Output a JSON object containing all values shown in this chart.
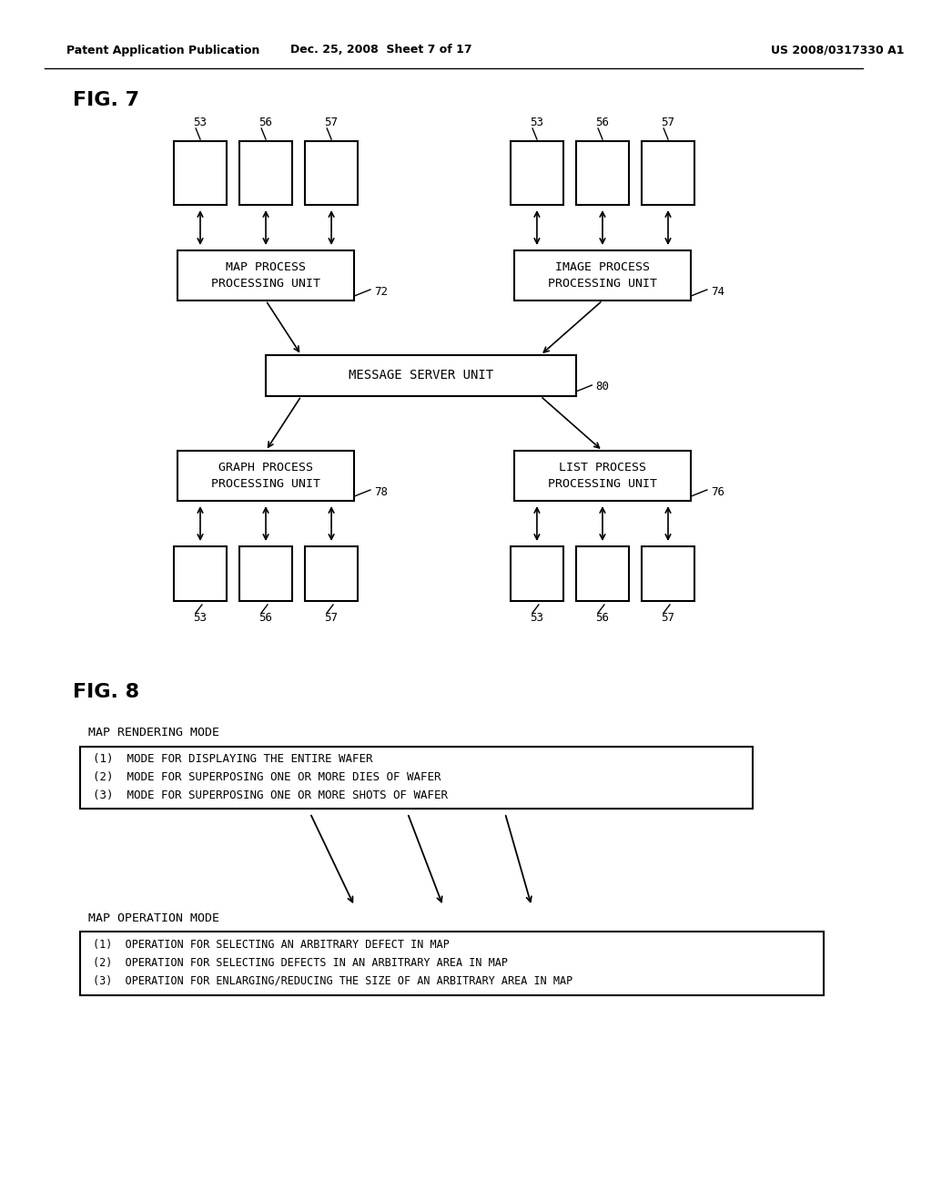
{
  "bg_color": "#ffffff",
  "header_left": "Patent Application Publication",
  "header_center": "Dec. 25, 2008  Sheet 7 of 17",
  "header_right": "US 2008/0317330 A1",
  "fig7_label": "FIG. 7",
  "fig8_label": "FIG. 8",
  "node_map_process": "MAP PROCESS\nPROCESSING UNIT",
  "node_map_label": "72",
  "node_image_process": "IMAGE PROCESS\nPROCESSING UNIT",
  "node_image_label": "74",
  "node_message_server": "MESSAGE SERVER UNIT",
  "node_message_label": "80",
  "node_graph_process": "GRAPH PROCESS\nPROCESSING UNIT",
  "node_graph_label": "78",
  "node_list_process": "LIST PROCESS\nPROCESSING UNIT",
  "node_list_label": "76",
  "small_box_labels": [
    "53",
    "56",
    "57"
  ],
  "rendering_mode_title": "MAP RENDERING MODE",
  "rendering_box_lines": [
    "(1)  MODE FOR DISPLAYING THE ENTIRE WAFER",
    "(2)  MODE FOR SUPERPOSING ONE OR MORE DIES OF WAFER",
    "(3)  MODE FOR SUPERPOSING ONE OR MORE SHOTS OF WAFER"
  ],
  "operation_mode_title": "MAP OPERATION MODE",
  "operation_box_lines": [
    "(1)  OPERATION FOR SELECTING AN ARBITRARY DEFECT IN MAP",
    "(2)  OPERATION FOR SELECTING DEFECTS IN AN ARBITRARY AREA IN MAP",
    "(3)  OPERATION FOR ENLARGING/REDUCING THE SIZE OF AN ARBITRARY AREA IN MAP"
  ],
  "text_color": "#000000",
  "box_edge_color": "#000000",
  "box_face_color": "#ffffff",
  "font_family": "DejaVu Sans Mono"
}
